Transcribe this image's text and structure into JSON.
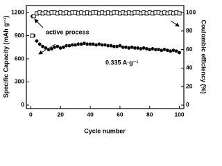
{
  "chart_data": {
    "type": "scatter",
    "xlabel": "Cycle number",
    "ylabel": "Specific Capacity (mAh g⁻¹)",
    "y2label": "Coulombic efficiency (%)",
    "annotations": [
      "active process",
      "0.335 A·g⁻¹"
    ],
    "xlim": [
      -3,
      103
    ],
    "xticks": [
      0,
      20,
      40,
      60,
      80,
      100
    ],
    "ylim": [
      -45,
      1290
    ],
    "yticks": [
      0,
      300,
      600,
      900,
      1200
    ],
    "y2lim": [
      -3.75,
      107.5
    ],
    "y2ticks": [
      0,
      20,
      40,
      60,
      80,
      100
    ],
    "x": [
      1,
      2,
      4,
      6,
      8,
      10,
      12,
      14,
      16,
      18,
      20,
      22,
      24,
      26,
      28,
      30,
      32,
      34,
      36,
      38,
      40,
      42,
      44,
      46,
      48,
      50,
      52,
      54,
      56,
      58,
      60,
      62,
      64,
      66,
      68,
      70,
      72,
      74,
      76,
      78,
      80,
      82,
      84,
      86,
      88,
      90,
      92,
      94,
      96,
      98,
      100
    ],
    "series": [
      {
        "marker": "filled-circle",
        "color": "#000000",
        "values": [
          1150,
          900,
          830,
          790,
          760,
          740,
          720,
          730,
          750,
          760,
          740,
          750,
          770,
          770,
          780,
          780,
          790,
          790,
          800,
          790,
          790,
          790,
          780,
          790,
          780,
          780,
          770,
          770,
          760,
          760,
          770,
          750,
          750,
          740,
          750,
          740,
          740,
          730,
          740,
          730,
          720,
          730,
          720,
          720,
          710,
          720,
          710,
          700,
          710,
          700,
          680
        ]
      },
      {
        "marker": "open-square",
        "color": "#000000",
        "axis": "y2",
        "values": [
          75,
          96,
          99,
          100,
          99,
          100,
          99,
          100,
          100,
          99,
          100,
          99,
          100,
          99,
          100,
          100,
          99,
          100,
          99,
          100,
          99,
          100,
          100,
          99,
          100,
          99,
          100,
          99,
          100,
          100,
          99,
          100,
          99,
          100,
          99,
          100,
          100,
          99,
          100,
          99,
          100,
          99,
          100,
          100,
          99,
          100,
          99,
          100,
          99,
          100,
          99
        ]
      }
    ]
  }
}
